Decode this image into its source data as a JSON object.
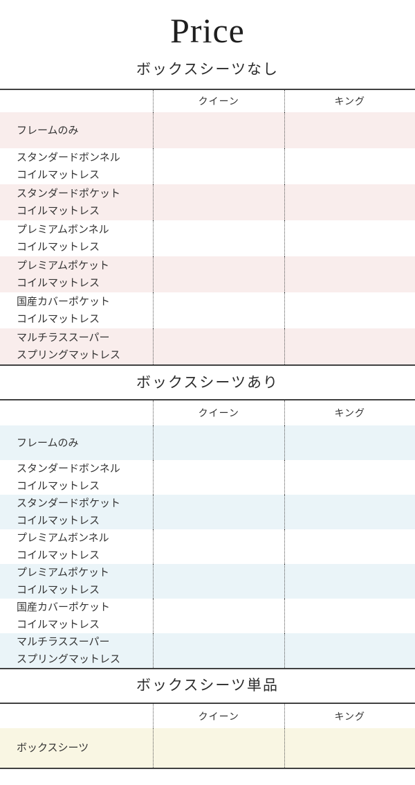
{
  "page": {
    "title": "Price"
  },
  "colors": {
    "table_border": "#404040",
    "column_divider_dotted": "#555555",
    "text": "#333333",
    "stripe_pink": "#f9edec",
    "stripe_blue": "#eaf4f8",
    "stripe_yellow": "#f9f6e3"
  },
  "tables": [
    {
      "section_title": "ボックスシーツなし",
      "columns": [
        "クイーン",
        "キング"
      ],
      "stripe_color": "#f9edec",
      "rows": [
        {
          "label": "フレームのみ",
          "values": [
            "",
            ""
          ]
        },
        {
          "label": "スタンダードボンネル\nコイルマットレス",
          "values": [
            "",
            ""
          ]
        },
        {
          "label": "スタンダードポケット\nコイルマットレス",
          "values": [
            "",
            ""
          ]
        },
        {
          "label": "プレミアムボンネル\nコイルマットレス",
          "values": [
            "",
            ""
          ]
        },
        {
          "label": "プレミアムポケット\nコイルマットレス",
          "values": [
            "",
            ""
          ]
        },
        {
          "label": "国産カバーポケット\nコイルマットレス",
          "values": [
            "",
            ""
          ]
        },
        {
          "label": "マルチラススーパー\nスプリングマットレス",
          "values": [
            "",
            ""
          ]
        }
      ]
    },
    {
      "section_title": "ボックスシーツあり",
      "columns": [
        "クイーン",
        "キング"
      ],
      "stripe_color": "#eaf4f8",
      "rows": [
        {
          "label": "フレームのみ",
          "values": [
            "",
            ""
          ]
        },
        {
          "label": "スタンダードボンネル\nコイルマットレス",
          "values": [
            "",
            ""
          ]
        },
        {
          "label": "スタンダードポケット\nコイルマットレス",
          "values": [
            "",
            ""
          ]
        },
        {
          "label": "プレミアムボンネル\nコイルマットレス",
          "values": [
            "",
            ""
          ]
        },
        {
          "label": "プレミアムポケット\nコイルマットレス",
          "values": [
            "",
            ""
          ]
        },
        {
          "label": "国産カバーポケット\nコイルマットレス",
          "values": [
            "",
            ""
          ]
        },
        {
          "label": "マルチラススーパー\nスプリングマットレス",
          "values": [
            "",
            ""
          ]
        }
      ]
    },
    {
      "section_title": "ボックスシーツ単品",
      "columns": [
        "クイーン",
        "キング"
      ],
      "stripe_color": "#f9f6e3",
      "rows": [
        {
          "label": "ボックスシーツ",
          "values": [
            "",
            ""
          ]
        }
      ]
    }
  ]
}
